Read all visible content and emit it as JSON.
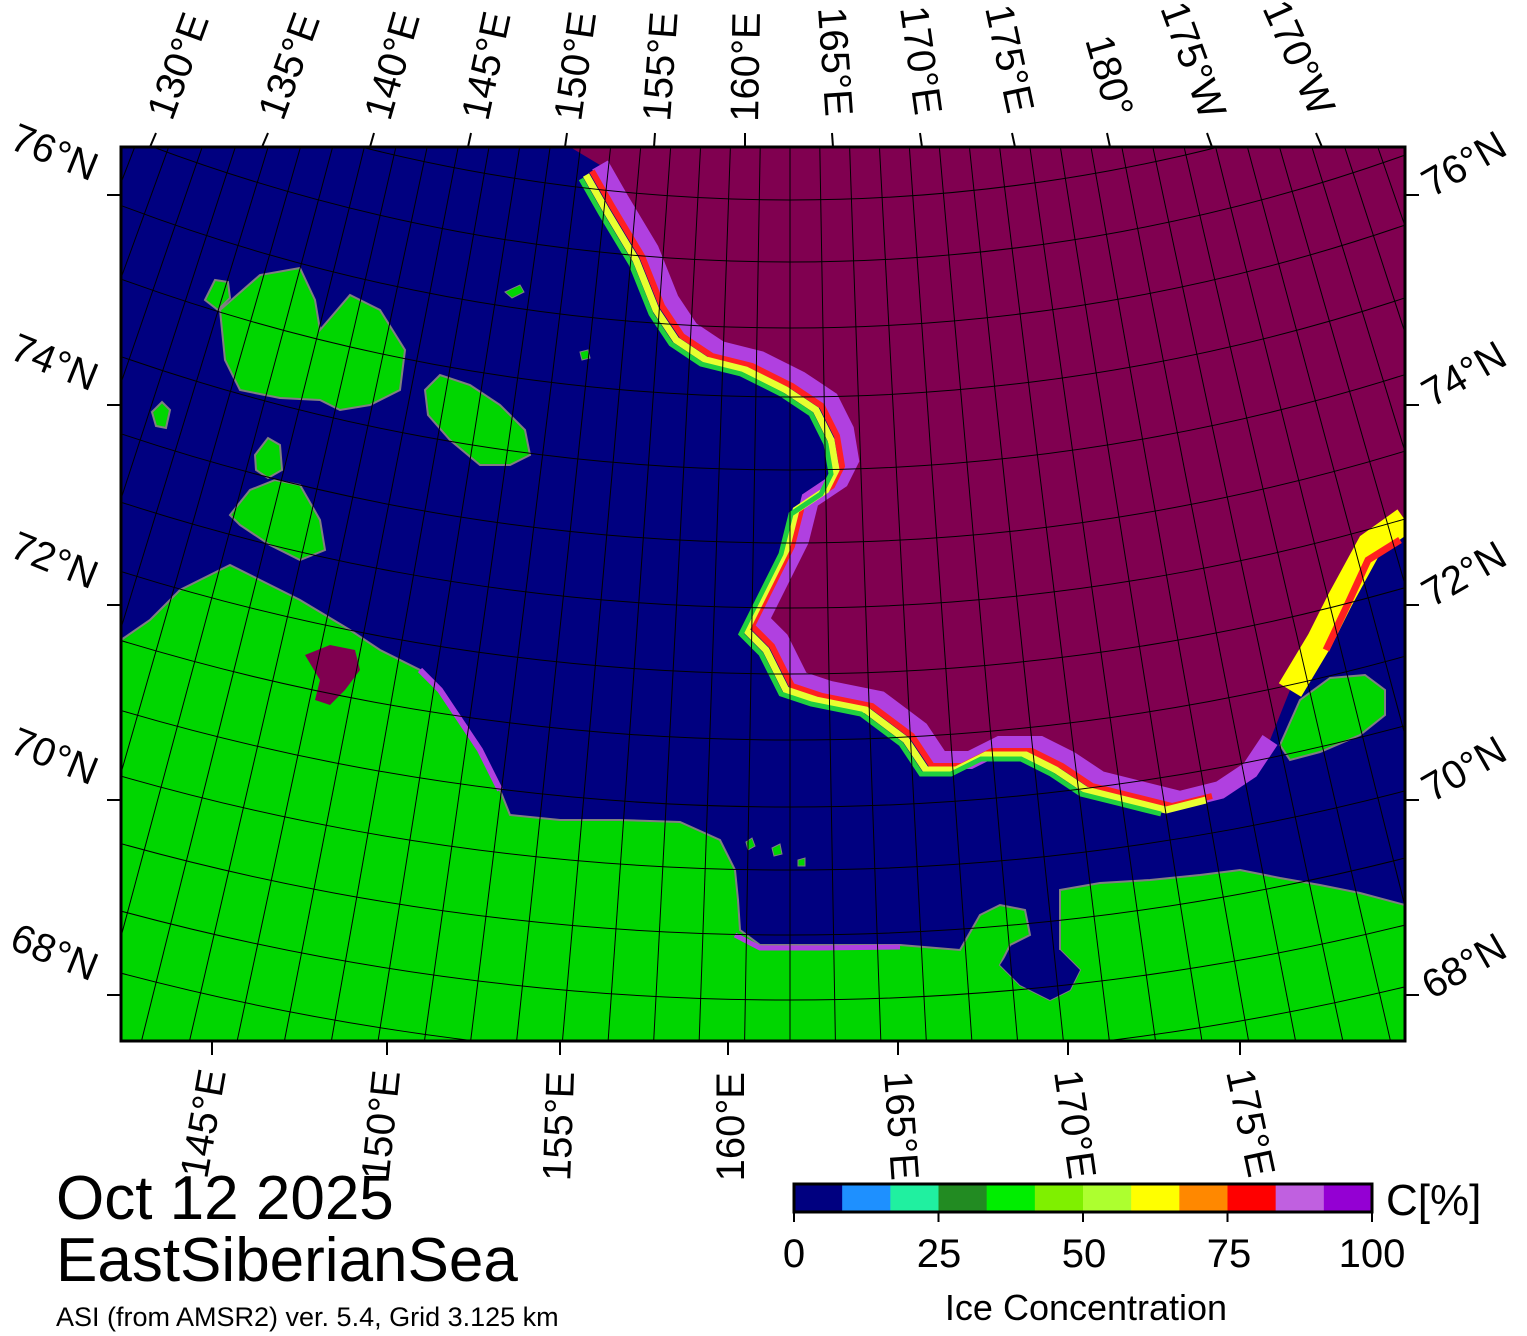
{
  "map": {
    "date": "Oct 12 2025",
    "region": "EastSiberianSea",
    "source": "ASI (from AMSR2) ver. 5.4,  Grid 3.125 km",
    "top_longitude_labels": [
      "130°E",
      "135°E",
      "140°E",
      "145°E",
      "150°E",
      "155°E",
      "160°E",
      "165°E",
      "170°E",
      "175°E",
      "180°",
      "175°W",
      "170°W"
    ],
    "bottom_longitude_labels": [
      "145°E",
      "150°E",
      "155°E",
      "160°E",
      "165°E",
      "170°E",
      "175°E"
    ],
    "latitude_labels": [
      "76°N",
      "74°N",
      "72°N",
      "70°N",
      "68°N"
    ],
    "colors": {
      "open_water": "#000080",
      "land": "#00d600",
      "ice_100": "#800050",
      "coast": "#888888"
    }
  },
  "colorbar": {
    "title": "Ice Concentration",
    "unit_label": "C[%]",
    "tick_labels": [
      "0",
      "25",
      "50",
      "75",
      "100"
    ],
    "ticks": [
      0,
      25,
      50,
      75,
      100
    ],
    "range": [
      0,
      100
    ],
    "colors": [
      "#000080",
      "#1e90ff",
      "#20f0a0",
      "#228b22",
      "#00ee00",
      "#7ff000",
      "#adff2f",
      "#ffff00",
      "#ff8800",
      "#ff0000",
      "#c060e0",
      "#9400d3"
    ]
  }
}
